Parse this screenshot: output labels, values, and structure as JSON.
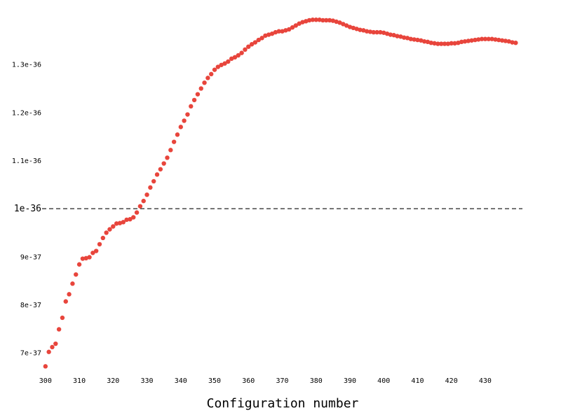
{
  "chart_data": {
    "type": "scatter",
    "title": "",
    "xlabel": "Configuration number",
    "ylabel": "",
    "marker_color": "#e8453c",
    "reference_line": {
      "y": 1e-36,
      "label": "1e-36",
      "style": "dashed"
    },
    "xlim": [
      299,
      441
    ],
    "ylim": [
      6.55e-37,
      1.405e-36
    ],
    "x_ticks": [
      300,
      310,
      320,
      330,
      340,
      350,
      360,
      370,
      380,
      390,
      400,
      410,
      420,
      430
    ],
    "x_tick_labels": [
      "300",
      "310",
      "320",
      "330",
      "340",
      "350",
      "360",
      "370",
      "380",
      "390",
      "400",
      "410",
      "420",
      "430"
    ],
    "y_ticks": [
      7e-37,
      8e-37,
      9e-37,
      1.1e-36,
      1.2e-36,
      1.3e-36
    ],
    "y_tick_labels": [
      "7e-37",
      "8e-37",
      "9e-37",
      "1.1e-36",
      "1.2e-36",
      "1.3e-36"
    ],
    "grid": false,
    "x": [
      300,
      301,
      302,
      303,
      304,
      305,
      306,
      307,
      308,
      309,
      310,
      311,
      312,
      313,
      314,
      315,
      316,
      317,
      318,
      319,
      320,
      321,
      322,
      323,
      324,
      325,
      326,
      327,
      328,
      329,
      330,
      331,
      332,
      333,
      334,
      335,
      336,
      337,
      338,
      339,
      340,
      341,
      342,
      343,
      344,
      345,
      346,
      347,
      348,
      349,
      350,
      351,
      352,
      353,
      354,
      355,
      356,
      357,
      358,
      359,
      360,
      361,
      362,
      363,
      364,
      365,
      366,
      367,
      368,
      369,
      370,
      371,
      372,
      373,
      374,
      375,
      376,
      377,
      378,
      379,
      380,
      381,
      382,
      383,
      384,
      385,
      386,
      387,
      388,
      389,
      390,
      391,
      392,
      393,
      394,
      395,
      396,
      397,
      398,
      399,
      400,
      401,
      402,
      403,
      404,
      405,
      406,
      407,
      408,
      409,
      410,
      411,
      412,
      413,
      414,
      415,
      416,
      417,
      418,
      419,
      420,
      421,
      422,
      423,
      424,
      425,
      426,
      427,
      428,
      429,
      430,
      431,
      432,
      433,
      434,
      435,
      436,
      437,
      438,
      439
    ],
    "y": [
      6.72e-37,
      7.02e-37,
      7.12e-37,
      7.19e-37,
      7.49e-37,
      7.73e-37,
      8.07e-37,
      8.22e-37,
      8.44e-37,
      8.63e-37,
      8.84e-37,
      8.96e-37,
      8.97e-37,
      8.99e-37,
      9.08e-37,
      9.12e-37,
      9.26e-37,
      9.39e-37,
      9.5e-37,
      9.57e-37,
      9.63e-37,
      9.69e-37,
      9.7e-37,
      9.72e-37,
      9.77e-37,
      9.78e-37,
      9.82e-37,
      9.92e-37,
      1.005e-36,
      1.016e-36,
      1.029e-36,
      1.044e-36,
      1.057e-36,
      1.071e-36,
      1.082e-36,
      1.094e-36,
      1.106e-36,
      1.122e-36,
      1.139e-36,
      1.154e-36,
      1.17e-36,
      1.183e-36,
      1.196e-36,
      1.213e-36,
      1.226e-36,
      1.238e-36,
      1.25e-36,
      1.262e-36,
      1.272e-36,
      1.28e-36,
      1.289e-36,
      1.295e-36,
      1.299e-36,
      1.302e-36,
      1.306e-36,
      1.312e-36,
      1.315e-36,
      1.319e-36,
      1.324e-36,
      1.331e-36,
      1.337e-36,
      1.342e-36,
      1.346e-36,
      1.351e-36,
      1.355e-36,
      1.36e-36,
      1.362e-36,
      1.364e-36,
      1.367e-36,
      1.369e-36,
      1.369e-36,
      1.371e-36,
      1.373e-36,
      1.377e-36,
      1.381e-36,
      1.385e-36,
      1.388e-36,
      1.39e-36,
      1.392e-36,
      1.393e-36,
      1.393e-36,
      1.393e-36,
      1.392e-36,
      1.392e-36,
      1.392e-36,
      1.391e-36,
      1.389e-36,
      1.387e-36,
      1.384e-36,
      1.381e-36,
      1.378e-36,
      1.376e-36,
      1.374e-36,
      1.372e-36,
      1.371e-36,
      1.369e-36,
      1.368e-36,
      1.367e-36,
      1.367e-36,
      1.367e-36,
      1.366e-36,
      1.364e-36,
      1.362e-36,
      1.361e-36,
      1.359e-36,
      1.358e-36,
      1.356e-36,
      1.355e-36,
      1.353e-36,
      1.352e-36,
      1.351e-36,
      1.35e-36,
      1.348e-36,
      1.347e-36,
      1.345e-36,
      1.344e-36,
      1.343e-36,
      1.343e-36,
      1.343e-36,
      1.343e-36,
      1.344e-36,
      1.344e-36,
      1.345e-36,
      1.347e-36,
      1.348e-36,
      1.349e-36,
      1.35e-36,
      1.351e-36,
      1.352e-36,
      1.353e-36,
      1.353e-36,
      1.353e-36,
      1.353e-36,
      1.352e-36,
      1.351e-36,
      1.35e-36,
      1.349e-36,
      1.348e-36,
      1.346e-36,
      1.345e-36
    ]
  }
}
